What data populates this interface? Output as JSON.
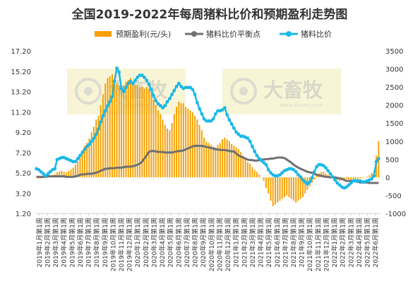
{
  "chart_data": {
    "type": "bar+line",
    "title": "全国2019-2022年每周猪料比价和预期盈利走势图",
    "legend": {
      "placement": "top-center",
      "items": [
        {
          "name": "预期盈利(元/头)",
          "color": "#f5a000",
          "kind": "bar"
        },
        {
          "name": "猪料比价平衡点",
          "color": "#707070",
          "kind": "line"
        },
        {
          "name": "猪料比价",
          "color": "#1ab8e8",
          "kind": "line-marker"
        }
      ]
    },
    "left_axis": {
      "ticks": [
        "17.20",
        "15.20",
        "13.20",
        "11.20",
        "9.20",
        "7.20",
        "5.20",
        "3.20",
        "1.20"
      ],
      "ylim": [
        1.2,
        17.2
      ]
    },
    "right_axis": {
      "ticks": [
        "3500",
        "3000",
        "2500",
        "2000",
        "1500",
        "1000",
        "500",
        "0",
        "-500",
        "-1000"
      ],
      "ylim": [
        -1000,
        3500
      ]
    },
    "x_labels": [
      "2019年1月第1周",
      "2019年2月第1周",
      "2019年3月第1周",
      "2019年4月第1周",
      "2019年5月第1周",
      "2019年6月第1周",
      "2019年7月第1周",
      "2019年8月第1周",
      "2019年9月第1周",
      "2019年10月第1周",
      "2019年11月第1周",
      "2019年12月第1周",
      "2020年1月第1周",
      "2020年2月第1周",
      "2020年3月第1周",
      "2020年4月第1周",
      "2020年5月第1周",
      "2020年6月第1周",
      "2020年7月第1周",
      "2020年8月第1周",
      "2020年9月第1周",
      "2020年10月第1周",
      "2020年11月第1周",
      "2020年12月第1周",
      "2021年1月第1周",
      "2021年2月第1周",
      "2021年3月第1周",
      "2021年4月第1周",
      "2021年5月第1周",
      "2021年6月第1周",
      "2021年7月第1周",
      "2021年8月第1周",
      "2021年9月第1周",
      "2021年10月第1周",
      "2021年11月第1周",
      "2021年12月第1周",
      "2022年1月第1周",
      "2022年2月第1周",
      "2022年3月第1周",
      "2022年4月第1周",
      "2022年5月第1周",
      "2022年6月第1周"
    ],
    "series": [
      {
        "name": "预期盈利(元/头)",
        "axis": "right",
        "type": "bar",
        "values": [
          -20,
          -30,
          -30,
          -20,
          -20,
          0,
          20,
          60,
          90,
          140,
          160,
          180,
          150,
          130,
          180,
          220,
          270,
          350,
          450,
          600,
          750,
          870,
          950,
          1080,
          1250,
          1400,
          1600,
          1700,
          2000,
          2300,
          2600,
          2750,
          2800,
          2850,
          2750,
          2600,
          2550,
          2500,
          2550,
          2650,
          2700,
          2750,
          2650,
          2550,
          2550,
          2500,
          2500,
          2450,
          2500,
          2450,
          2350,
          2150,
          2000,
          1850,
          1750,
          1600,
          1450,
          1350,
          1300,
          1500,
          1750,
          1950,
          2100,
          2050,
          2050,
          1950,
          1900,
          1850,
          1800,
          1700,
          1600,
          1450,
          1300,
          1100,
          980,
          950,
          900,
          850,
          830,
          900,
          950,
          1050,
          1100,
          1050,
          1000,
          920,
          880,
          830,
          780,
          700,
          600,
          500,
          420,
          380,
          280,
          200,
          150,
          80,
          -10,
          -100,
          -300,
          -450,
          -650,
          -800,
          -750,
          -700,
          -650,
          -600,
          -550,
          -500,
          -550,
          -600,
          -650,
          -700,
          -650,
          -600,
          -550,
          -450,
          -350,
          -250,
          -150,
          -60,
          50,
          120,
          150,
          150,
          100,
          60,
          20,
          -30,
          -50,
          -80,
          -100,
          -80,
          -60,
          -50,
          -60,
          -80,
          -100,
          -80,
          -50,
          -30,
          -20,
          0,
          20,
          60,
          120,
          200,
          600,
          1000
        ]
      },
      {
        "name": "猪料比价平衡点",
        "axis": "left",
        "type": "line",
        "values": [
          4.8,
          4.8,
          4.8,
          4.8,
          4.8,
          4.85,
          4.85,
          4.85,
          4.85,
          4.85,
          4.85,
          4.85,
          4.85,
          4.8,
          4.8,
          4.8,
          4.8,
          4.85,
          4.9,
          5.0,
          5.05,
          5.05,
          5.1,
          5.1,
          5.1,
          5.15,
          5.2,
          5.3,
          5.4,
          5.5,
          5.6,
          5.6,
          5.65,
          5.65,
          5.65,
          5.7,
          5.7,
          5.7,
          5.75,
          5.8,
          5.8,
          5.8,
          5.85,
          5.9,
          6.0,
          6.1,
          6.3,
          6.6,
          6.9,
          7.25,
          7.35,
          7.35,
          7.3,
          7.25,
          7.25,
          7.25,
          7.2,
          7.2,
          7.2,
          7.2,
          7.25,
          7.3,
          7.35,
          7.35,
          7.4,
          7.5,
          7.6,
          7.7,
          7.8,
          7.85,
          7.85,
          7.85,
          7.85,
          7.8,
          7.75,
          7.7,
          7.65,
          7.6,
          7.5,
          7.5,
          7.45,
          7.45,
          7.45,
          7.4,
          7.35,
          7.3,
          7.3,
          7.1,
          6.9,
          6.8,
          6.7,
          6.6,
          6.5,
          6.45,
          6.45,
          6.4,
          6.4,
          6.45,
          6.5,
          6.5,
          6.55,
          6.55,
          6.6,
          6.6,
          6.65,
          6.7,
          6.7,
          6.7,
          6.65,
          6.5,
          6.35,
          6.2,
          6.0,
          5.85,
          5.7,
          5.6,
          5.5,
          5.4,
          5.3,
          5.25,
          5.2,
          5.1,
          5.0,
          4.95,
          4.9,
          4.85,
          4.8,
          4.8,
          4.75,
          4.75,
          4.75,
          4.7,
          4.65,
          4.6,
          4.5,
          4.4,
          4.4,
          4.4,
          4.4,
          4.35,
          4.3,
          4.25,
          4.25,
          4.25,
          4.25,
          4.2,
          4.2,
          4.2,
          4.2,
          4.2
        ]
      },
      {
        "name": "猪料比价",
        "axis": "left",
        "type": "line",
        "values": [
          5.6,
          5.5,
          5.3,
          5.1,
          4.9,
          5.1,
          5.3,
          5.5,
          5.6,
          6.5,
          6.6,
          6.7,
          6.7,
          6.6,
          6.5,
          6.4,
          6.3,
          6.3,
          6.6,
          6.9,
          7.2,
          7.5,
          7.8,
          8.0,
          8.3,
          8.6,
          9.0,
          9.5,
          10.2,
          10.8,
          11.3,
          11.8,
          12.2,
          12.7,
          14.2,
          15.5,
          15.1,
          13.5,
          13.2,
          13.6,
          14.0,
          14.2,
          14.0,
          14.3,
          14.6,
          14.8,
          14.8,
          14.6,
          14.3,
          13.9,
          13.4,
          12.8,
          12.3,
          12.0,
          11.8,
          11.6,
          11.8,
          12.2,
          12.5,
          12.9,
          13.3,
          13.7,
          14.0,
          13.7,
          13.5,
          13.6,
          13.6,
          13.6,
          13.4,
          12.9,
          12.1,
          11.5,
          11.0,
          10.5,
          10.3,
          10.3,
          10.3,
          10.5,
          11.0,
          11.3,
          11.3,
          11.4,
          11.6,
          10.9,
          10.4,
          10.0,
          9.6,
          9.2,
          9.0,
          8.8,
          8.8,
          8.7,
          8.6,
          8.3,
          7.8,
          7.3,
          6.9,
          6.6,
          6.4,
          6.2,
          6.0,
          5.5,
          5.2,
          5.0,
          4.9,
          4.9,
          5.0,
          5.2,
          5.4,
          5.5,
          5.6,
          5.6,
          5.5,
          5.3,
          5.0,
          4.8,
          4.5,
          4.3,
          4.1,
          4.3,
          4.7,
          5.3,
          5.8,
          6.0,
          6.0,
          5.9,
          5.7,
          5.4,
          5.1,
          4.8,
          4.5,
          4.2,
          4.0,
          3.8,
          3.7,
          3.8,
          4.0,
          4.2,
          4.4,
          4.4,
          4.4,
          4.4,
          4.3,
          4.3,
          4.4,
          4.5,
          4.6,
          4.9,
          6.3,
          6.6
        ]
      }
    ]
  },
  "watermarks": [
    {
      "text": "大畜牧",
      "url": "www.dxumu.com"
    },
    {
      "text": "大畜牧",
      "url": "www.dxumu.com"
    }
  ]
}
